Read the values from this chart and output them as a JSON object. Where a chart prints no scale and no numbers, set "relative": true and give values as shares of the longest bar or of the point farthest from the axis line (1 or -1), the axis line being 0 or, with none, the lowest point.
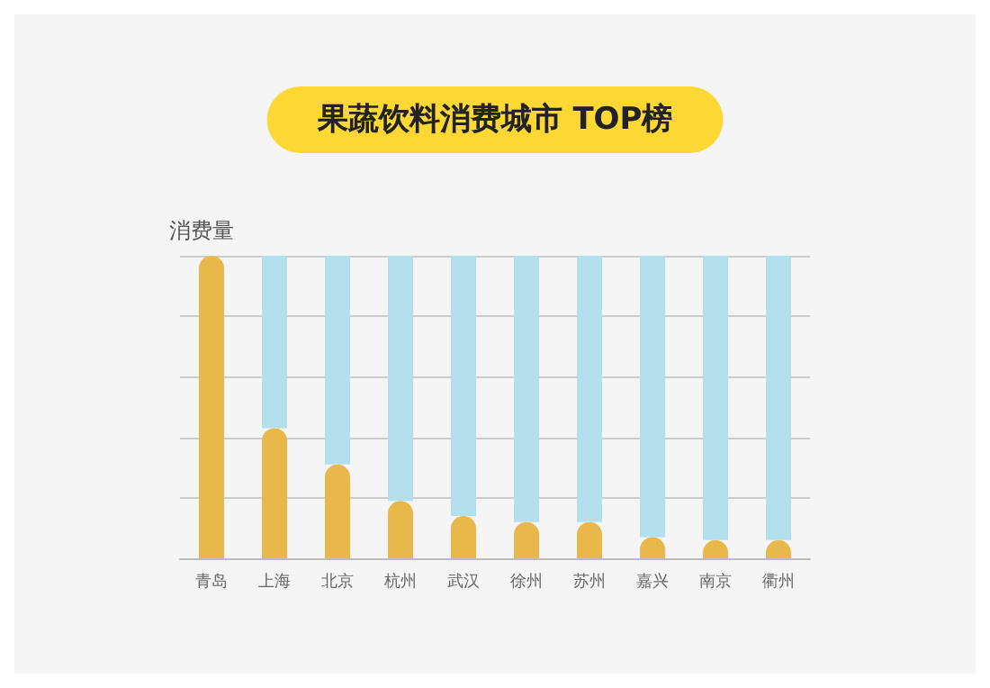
{
  "chart_data": {
    "type": "bar",
    "title": "果蔬饮料消费城市 TOP榜",
    "ylabel": "消费量",
    "categories": [
      "青岛",
      "上海",
      "北京",
      "杭州",
      "武汉",
      "徐州",
      "苏州",
      "嘉兴",
      "南京",
      "衢州"
    ],
    "series": [
      {
        "color": "#e8b84a",
        "values": [
          1,
          0.43,
          0.31,
          0.19,
          0.14,
          0.12,
          0.12,
          0.07,
          0.06,
          0.06
        ]
      },
      {
        "color": "#b3e0ec",
        "values": [
          0,
          0.57,
          0.69,
          0.81,
          0.86,
          0.88,
          0.88,
          0.93,
          0.94,
          0.94
        ]
      }
    ],
    "stacked": true,
    "relative": true,
    "grid": "y"
  }
}
